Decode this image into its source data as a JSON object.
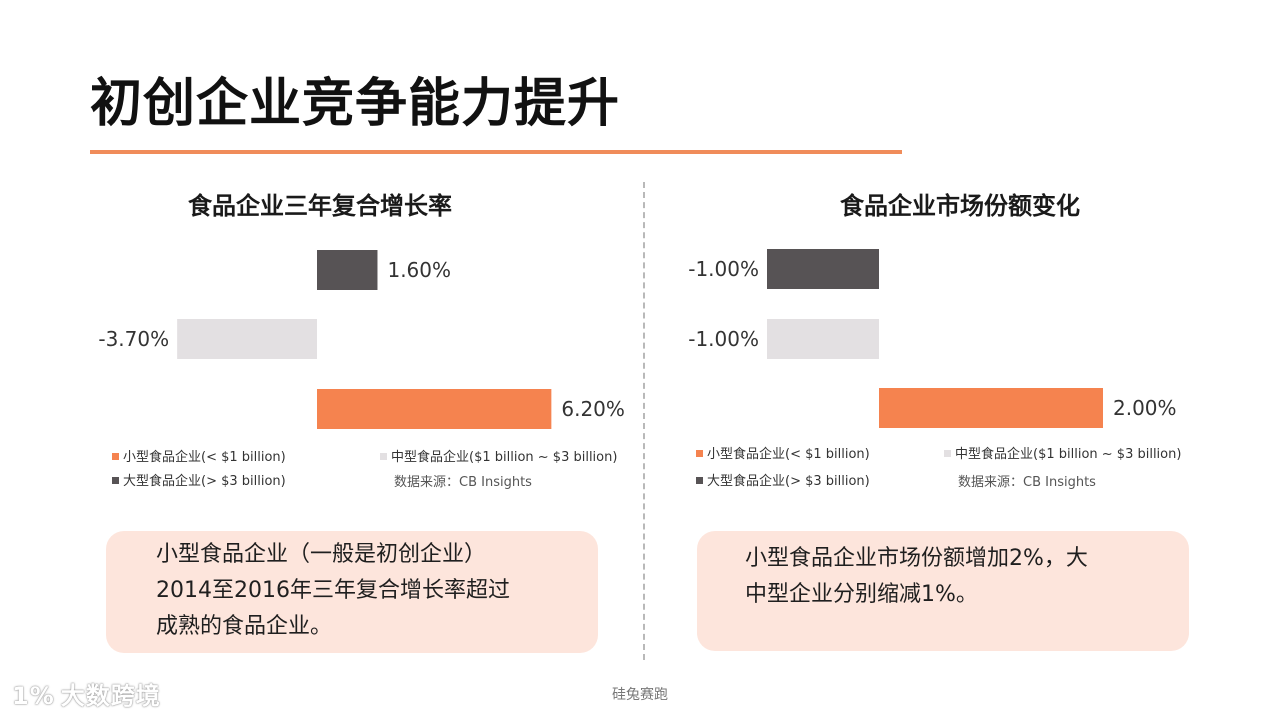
{
  "title": "初创企业竞争能力提升",
  "footer": "硅兔赛跑",
  "watermark": {
    "logo": "1%",
    "text": "大数跨境"
  },
  "colors": {
    "small": "#f5834f",
    "medium": "#e3e0e2",
    "large": "#575355",
    "accent": "#f08c5a"
  },
  "legend": {
    "small": "小型食品企业(< $1 billion)",
    "medium": "中型食品企业($1 billion ~ $3 billion)",
    "large": "大型食品企业(> $3 billion)"
  },
  "source": "数据来源：CB Insights",
  "chart_data": [
    {
      "type": "bar",
      "orientation": "horizontal",
      "title": "食品企业三年复合增长率",
      "categories": [
        "大型食品企业(> $3 billion)",
        "中型食品企业($1 billion ~ $3 billion)",
        "小型食品企业(< $1 billion)"
      ],
      "values": [
        1.6,
        -3.7,
        6.2
      ],
      "labels": [
        "1.60%",
        "-3.70%",
        "6.20%"
      ],
      "unit": "%",
      "xlim": [
        -5,
        8
      ]
    },
    {
      "type": "bar",
      "orientation": "horizontal",
      "title": "食品企业市场份额变化",
      "categories": [
        "大型食品企业(> $3 billion)",
        "中型食品企业($1 billion ~ $3 billion)",
        "小型食品企业(< $1 billion)"
      ],
      "values": [
        -1.0,
        -1.0,
        2.0
      ],
      "labels": [
        "-1.00%",
        "-1.00%",
        "2.00%"
      ],
      "unit": "%",
      "xlim": [
        -2,
        4
      ]
    }
  ],
  "callouts": [
    {
      "lines": [
        "小型食品企业（一般是初创企业）",
        "2014至2016年三年复合增长率超过",
        "成熟的食品企业。"
      ]
    },
    {
      "lines": [
        "小型食品企业市场份额增加2%，大",
        "中型企业分别缩减1%。"
      ]
    }
  ]
}
